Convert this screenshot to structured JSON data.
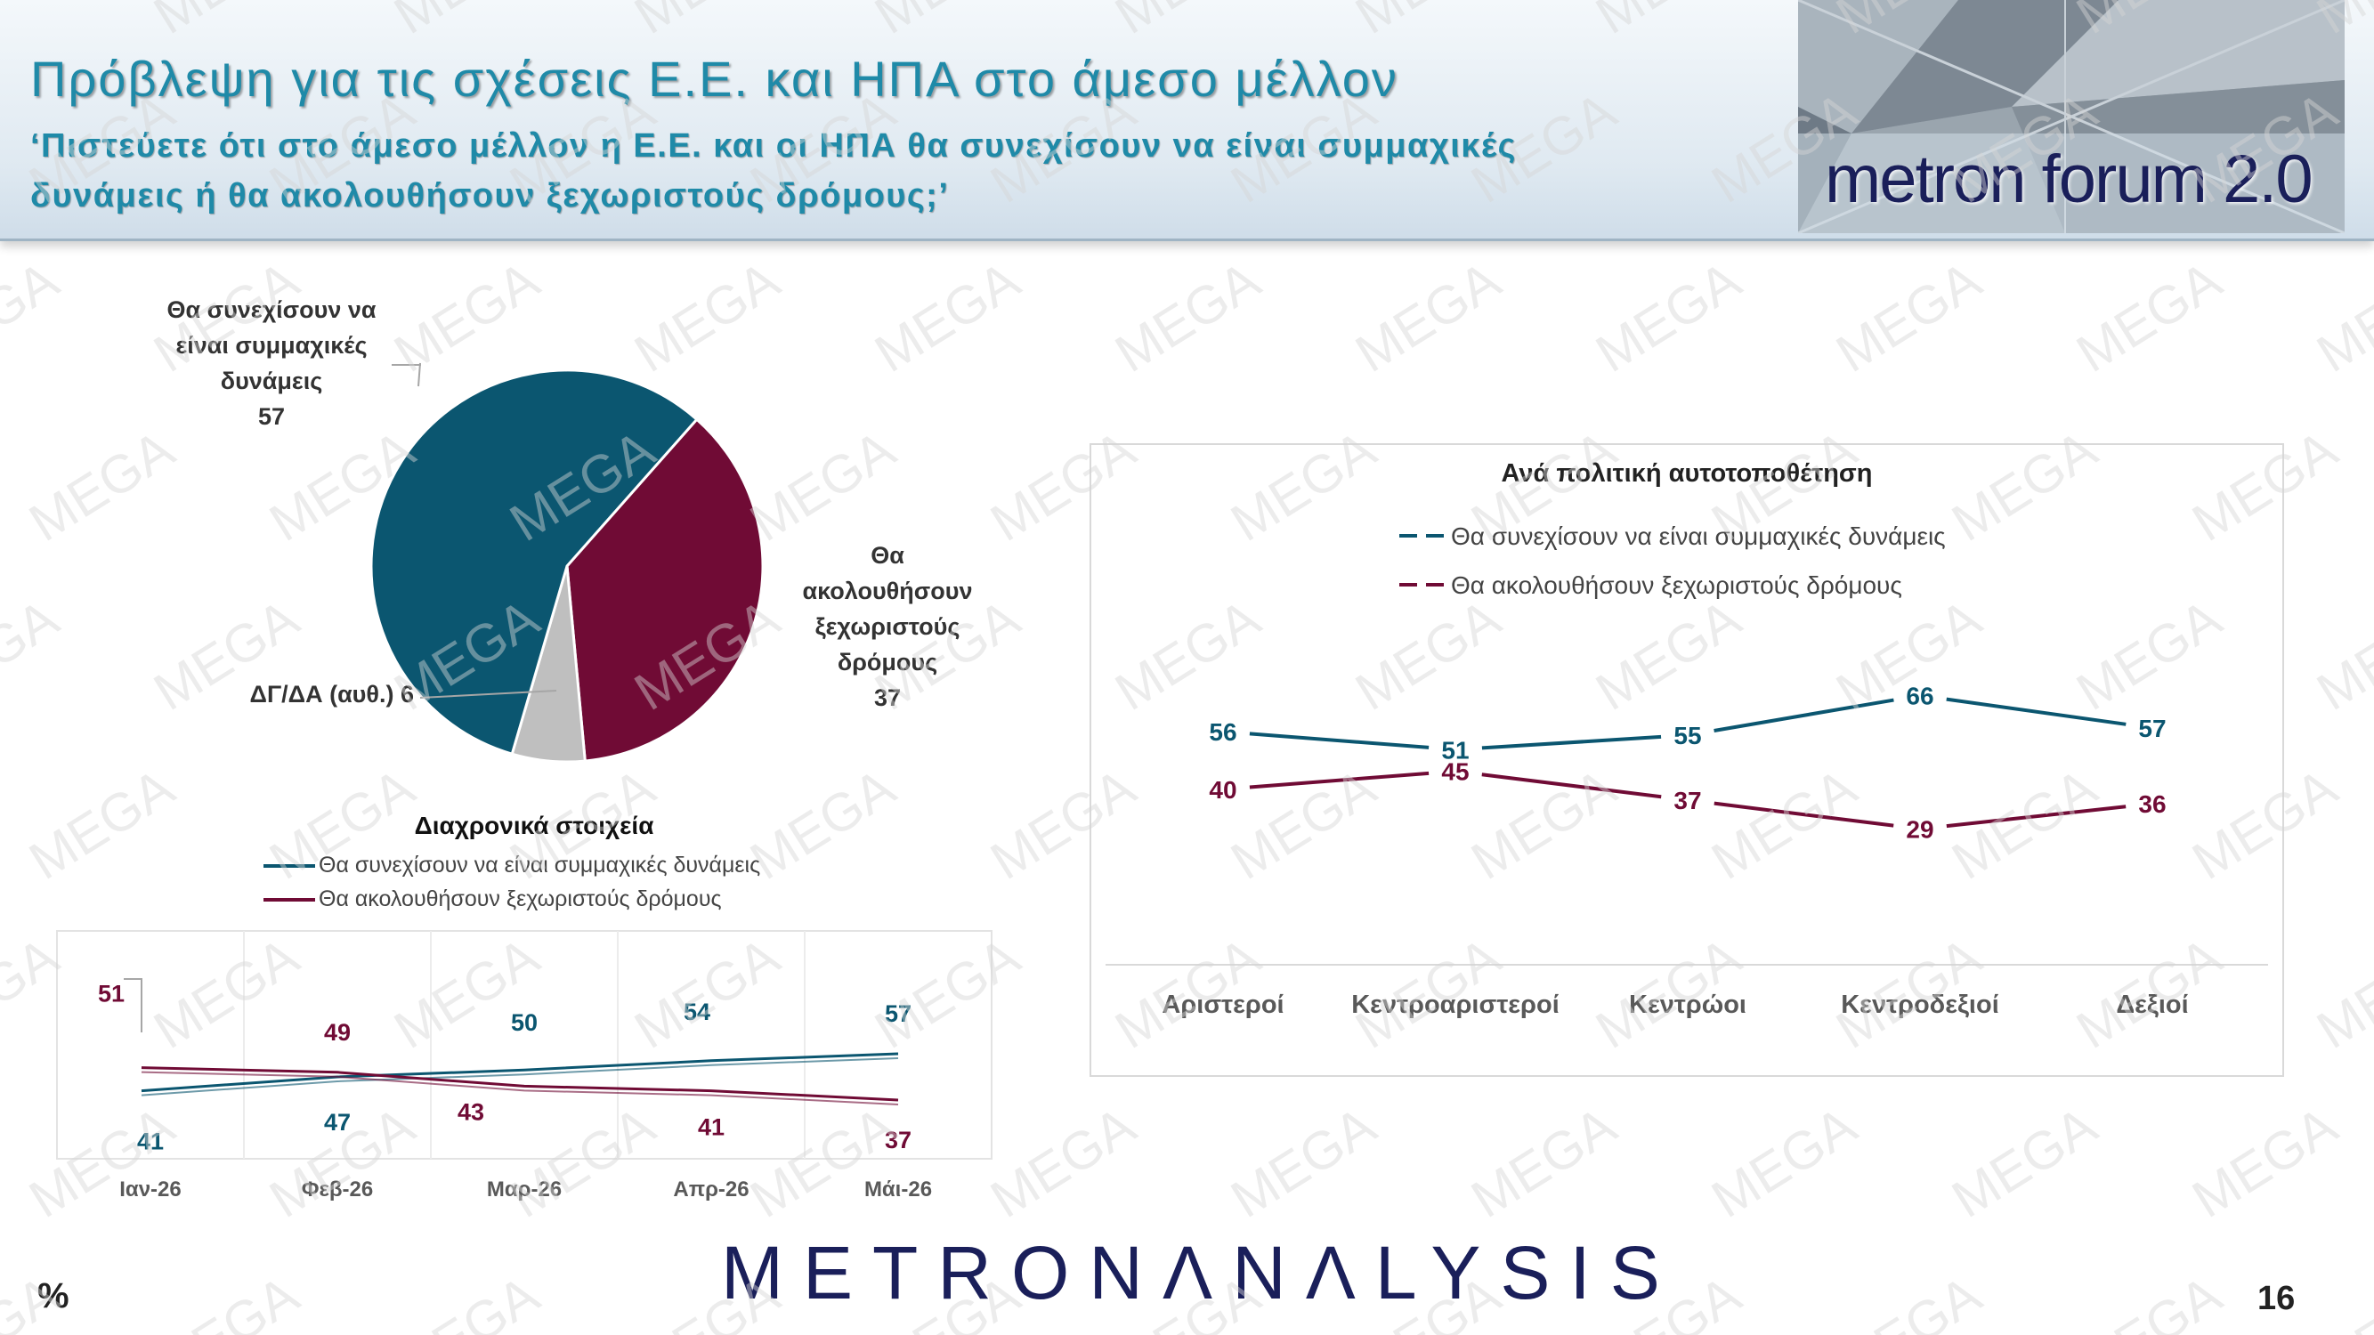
{
  "header": {
    "title": "Πρόβλεψη για τις σχέσεις Ε.Ε. και ΗΠΑ στο άμεσο μέλλον",
    "subtitle": "‘Πιστεύετε ότι στο άμεσο μέλλον η Ε.Ε. και οι ΗΠΑ θα συνεχίσουν να είναι συμμαχικές δυνάμεις ή θα ακολουθήσουν ξεχωριστούς δρόμους;’",
    "logo_text": "metron forum 2.0"
  },
  "footer": {
    "brand": "METRONΛNΛLYSIS",
    "unit": "%",
    "page_number": "16",
    "watermark": "MEGA"
  },
  "colors": {
    "allied": "#0b5670",
    "separate": "#700b35",
    "dk": "#bfbfbf"
  },
  "chart_data": [
    {
      "type": "pie",
      "labels": [
        "Θα συνεχίσουν να είναι συμμαχικές δυνάμεις",
        "Θα ακολουθήσουν ξεχωριστούς δρόμους",
        "ΔΓ/ΔΑ (αυθ.)"
      ],
      "values": [
        57,
        37,
        6
      ],
      "colors": [
        "#0b5670",
        "#700b35",
        "#bfbfbf"
      ]
    },
    {
      "type": "line",
      "title": "Διαχρονικά στοιχεία",
      "categories": [
        "Ιαν-26",
        "Φεβ-26",
        "Μαρ-26",
        "Απρ-26",
        "Μάι-26"
      ],
      "series": [
        {
          "name": "Θα συνεχίσουν να είναι συμμαχικές δυνάμεις",
          "values": [
            41,
            47,
            50,
            54,
            57
          ],
          "color": "#0b5670"
        },
        {
          "name": "Θα ακολουθήσουν ξεχωριστούς δρόμους",
          "values": [
            51,
            49,
            43,
            41,
            37
          ],
          "color": "#700b35"
        }
      ]
    },
    {
      "type": "line",
      "title": "Ανά πολιτική αυτοτοποθέτηση",
      "categories": [
        "Αριστεροί",
        "Κεντροαριστεροί",
        "Κεντρώοι",
        "Κεντροδεξιοί",
        "Δεξιοί"
      ],
      "series": [
        {
          "name": "Θα συνεχίσουν να είναι συμμαχικές δυνάμεις",
          "values": [
            56,
            51,
            55,
            66,
            57
          ],
          "color": "#0b5670"
        },
        {
          "name": "Θα ακολουθήσουν ξεχωριστούς δρόμους",
          "values": [
            40,
            45,
            37,
            29,
            36
          ],
          "color": "#700b35"
        }
      ]
    }
  ]
}
